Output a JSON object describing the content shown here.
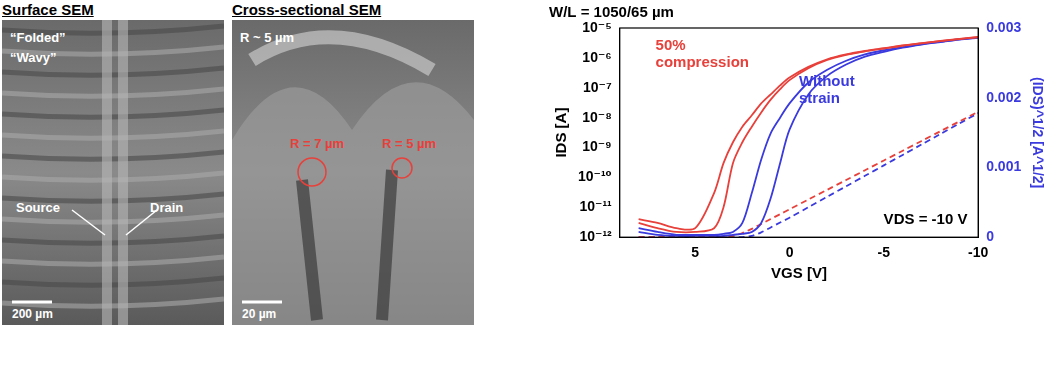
{
  "images": [
    {
      "title": "Surface SEM",
      "labels": [
        "“Folded”",
        "“Wavy”",
        "Source",
        "Drain"
      ],
      "scale_bar": "200 µm"
    },
    {
      "title": "Cross-sectional SEM",
      "labels": [
        "R ~ 5 µm",
        "R = 7 µm",
        "R = 5 µm"
      ],
      "scale_bar": "20 µm"
    }
  ],
  "chart_data": {
    "type": "line",
    "title": "W/L = 1050/65 µm",
    "x_label": "VGS [V]",
    "y_label": "IDS [A]",
    "y2_label": "(IDS)^1/2 [A^1/2]",
    "log": "y",
    "grid": false,
    "xlim": [
      9,
      -10
    ],
    "xticks": [
      5,
      0,
      -5,
      -10
    ],
    "ylim": [
      1e-12,
      1e-05
    ],
    "yticks": [
      {
        "value": 1e-12,
        "label": "10⁻¹²"
      },
      {
        "value": 1e-11,
        "label": "10⁻¹¹"
      },
      {
        "value": 1e-10,
        "label": "10⁻¹⁰"
      },
      {
        "value": 1e-09,
        "label": "10⁻⁹"
      },
      {
        "value": 1e-08,
        "label": "10⁻⁸"
      },
      {
        "value": 1e-07,
        "label": "10⁻⁷"
      },
      {
        "value": 1e-06,
        "label": "10⁻⁶"
      },
      {
        "value": 1e-05,
        "label": "10⁻⁵"
      }
    ],
    "y2lim": [
      0,
      0.003
    ],
    "y2ticks": [
      0,
      0.001,
      0.002,
      0.003
    ],
    "x": [
      8,
      7,
      6,
      5,
      4,
      3.5,
      3,
      2.5,
      2,
      1.5,
      1,
      0.5,
      0,
      -1,
      -2,
      -3,
      -4,
      -5,
      -6,
      -7,
      -8,
      -9,
      -10
    ],
    "series": [
      {
        "color": "#e8403a",
        "line_style": "solid",
        "marker": "none",
        "values": [
          4e-12,
          3e-12,
          2e-12,
          2e-12,
          3e-11,
          3e-10,
          1.5e-09,
          5e-09,
          1.2e-08,
          3e-08,
          6e-08,
          1.2e-07,
          2.2e-07,
          5e-07,
          9e-07,
          1.3e-06,
          1.7e-06,
          2.1e-06,
          2.6e-06,
          3.1e-06,
          3.7e-06,
          4.3e-06,
          5e-06
        ]
      },
      {
        "color": "#e8403a",
        "line_style": "solid",
        "marker": "none",
        "values": [
          3e-12,
          2e-12,
          1.5e-12,
          1.5e-12,
          2e-12,
          1e-11,
          3e-10,
          1.5e-09,
          5e-09,
          1.5e-08,
          4e-08,
          9e-08,
          1.8e-07,
          4.5e-07,
          8.5e-07,
          1.25e-06,
          1.65e-06,
          2.05e-06,
          2.55e-06,
          3.05e-06,
          3.65e-06,
          4.25e-06,
          4.9e-06
        ]
      },
      {
        "color": "#3a3adf",
        "line_style": "solid",
        "marker": "none",
        "values": [
          2e-12,
          1.5e-12,
          1.2e-12,
          1.2e-12,
          1.2e-12,
          1.3e-12,
          1.5e-12,
          3e-12,
          3e-11,
          4e-10,
          3e-09,
          1e-08,
          3e-08,
          1.5e-07,
          4e-07,
          8e-07,
          1.3e-06,
          1.8e-06,
          2.3e-06,
          2.9e-06,
          3.5e-06,
          4.2e-06,
          4.8e-06
        ]
      },
      {
        "color": "#3a3adf",
        "line_style": "solid",
        "marker": "none",
        "values": [
          1.5e-12,
          1.2e-12,
          1.1e-12,
          1.1e-12,
          1.1e-12,
          1.1e-12,
          1.2e-12,
          1.3e-12,
          1.5e-12,
          3e-12,
          2e-11,
          3e-10,
          4e-09,
          6e-08,
          2.5e-07,
          6e-07,
          1.1e-06,
          1.6e-06,
          2.2e-06,
          2.8e-06,
          3.4e-06,
          4.1e-06,
          4.7e-06
        ]
      },
      {
        "color": "#e8403a",
        "line_style": "dashed",
        "marker": "none",
        "axis": "y2",
        "values": [
          0,
          0,
          0,
          0,
          0,
          0,
          2e-05,
          6e-05,
          0.00012,
          0.00019,
          0.00026,
          0.00033,
          0.0004,
          0.00054,
          0.00068,
          0.00082,
          0.00096,
          0.0011,
          0.00124,
          0.00138,
          0.00152,
          0.00166,
          0.0018
        ]
      },
      {
        "color": "#3a3adf",
        "line_style": "dashed",
        "marker": "none",
        "axis": "y2",
        "values": [
          0,
          0,
          0,
          0,
          0,
          0,
          0,
          0,
          2e-05,
          7e-05,
          0.00014,
          0.00021,
          0.00028,
          0.00043,
          0.00058,
          0.00073,
          0.00088,
          0.00103,
          0.00118,
          0.00133,
          0.00148,
          0.00163,
          0.00178
        ]
      }
    ],
    "annotations": [
      {
        "text": "50% compression",
        "color": "#e8403a"
      },
      {
        "text": "Without strain",
        "color": "#3a3adf"
      },
      {
        "text": "VDS = -10 V",
        "color": "#000000"
      }
    ],
    "y2_color": "#3a3adf"
  }
}
